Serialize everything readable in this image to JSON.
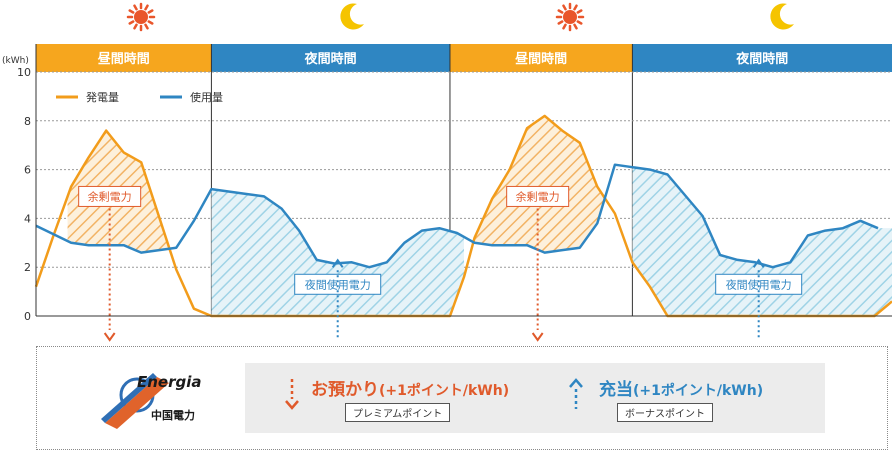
{
  "chart_data": {
    "type": "area",
    "ylabel": "(kWh)",
    "ylim": [
      0,
      10
    ],
    "yticks": [
      0,
      2,
      4,
      6,
      8,
      10
    ],
    "grid": true,
    "legend_position": "top-left",
    "bands": [
      {
        "label": "昼間時間",
        "kind": "day"
      },
      {
        "label": "夜間時間",
        "kind": "night"
      },
      {
        "label": "昼間時間",
        "kind": "day"
      },
      {
        "label": "夜間時間",
        "kind": "night"
      }
    ],
    "series": [
      {
        "name": "発電量",
        "color": "#f29c1b",
        "points": [
          [
            0,
            1.2
          ],
          [
            0.5,
            3.3
          ],
          [
            1,
            5.3
          ],
          [
            1.5,
            6.5
          ],
          [
            2,
            7.6
          ],
          [
            2.5,
            6.7
          ],
          [
            3,
            6.3
          ],
          [
            3.5,
            4.1
          ],
          [
            4,
            1.9
          ],
          [
            4.5,
            0.3
          ],
          [
            5,
            0
          ],
          [
            5.5,
            0
          ],
          [
            6,
            0
          ],
          [
            6.5,
            0
          ],
          [
            7,
            0
          ],
          [
            7.5,
            0
          ],
          [
            8,
            0
          ],
          [
            8.5,
            0
          ],
          [
            9,
            0
          ],
          [
            9.5,
            0
          ],
          [
            10,
            0
          ],
          [
            10.5,
            0
          ],
          [
            11,
            0
          ],
          [
            11.5,
            0
          ],
          [
            11.8,
            0
          ],
          [
            12.2,
            1.6
          ],
          [
            12.5,
            3.2
          ],
          [
            13,
            4.8
          ],
          [
            13.5,
            6
          ],
          [
            14,
            7.7
          ],
          [
            14.5,
            8.2
          ],
          [
            15,
            7.6
          ],
          [
            15.5,
            7.1
          ],
          [
            16,
            5.3
          ],
          [
            16.5,
            4.2
          ],
          [
            17,
            2.2
          ],
          [
            17.5,
            1.2
          ],
          [
            18,
            0
          ],
          [
            18.5,
            0
          ],
          [
            19,
            0
          ],
          [
            19.5,
            0
          ],
          [
            20,
            0
          ],
          [
            20.5,
            0
          ],
          [
            21,
            0
          ],
          [
            21.5,
            0
          ],
          [
            22,
            0
          ],
          [
            22.5,
            0
          ],
          [
            23,
            0
          ],
          [
            23.5,
            0
          ],
          [
            23.9,
            0
          ],
          [
            24.4,
            0.6
          ]
        ]
      },
      {
        "name": "使用量",
        "color": "#2f86c2",
        "points": [
          [
            0,
            3.7
          ],
          [
            1,
            3
          ],
          [
            1.5,
            2.9
          ],
          [
            2,
            2.9
          ],
          [
            2.5,
            2.9
          ],
          [
            3,
            2.6
          ],
          [
            4,
            2.8
          ],
          [
            4.5,
            3.9
          ],
          [
            5,
            5.2
          ],
          [
            6,
            5
          ],
          [
            6.5,
            4.9
          ],
          [
            7,
            4.4
          ],
          [
            7.5,
            3.5
          ],
          [
            8,
            2.3
          ],
          [
            8.5,
            2.15
          ],
          [
            9,
            2.2
          ],
          [
            9.5,
            2
          ],
          [
            10,
            2.2
          ],
          [
            10.5,
            3
          ],
          [
            11,
            3.5
          ],
          [
            11.5,
            3.6
          ],
          [
            12,
            3.4
          ],
          [
            12.5,
            3
          ],
          [
            13,
            2.9
          ],
          [
            13.5,
            2.9
          ],
          [
            14,
            2.9
          ],
          [
            14.5,
            2.6
          ],
          [
            15,
            2.7
          ],
          [
            15.5,
            2.8
          ],
          [
            16,
            3.8
          ],
          [
            16.5,
            6.2
          ],
          [
            17,
            6.1
          ],
          [
            17.5,
            6
          ],
          [
            18,
            5.8
          ],
          [
            19,
            4.1
          ],
          [
            19.5,
            2.5
          ],
          [
            20,
            2.3
          ],
          [
            20.5,
            2.2
          ],
          [
            21,
            2
          ],
          [
            21.5,
            2.2
          ],
          [
            22,
            3.3
          ],
          [
            22.5,
            3.5
          ],
          [
            23,
            3.6
          ],
          [
            23.5,
            3.9
          ],
          [
            24,
            3.6
          ]
        ]
      }
    ],
    "annotations": [
      {
        "text": "余剰電力",
        "color": "#e05a2b"
      },
      {
        "text": "夜間使用電力",
        "color": "#2f86c2"
      },
      {
        "text": "余剰電力",
        "color": "#e05a2b"
      },
      {
        "text": "夜間使用電力",
        "color": "#2f86c2"
      }
    ],
    "icons": [
      "sun-icon",
      "moon-icon",
      "sun-icon",
      "moon-icon"
    ]
  },
  "brand": {
    "name": "Energia",
    "sub": "中国電力"
  },
  "legend_box": {
    "deposit_main": "お預かり",
    "deposit_note": "(+1ポイント/kWh)",
    "deposit_tag": "プレミアムポイント",
    "charge_main": "充当",
    "charge_note": "(+1ポイント/kWh)",
    "charge_tag": "ボーナスポイント"
  },
  "colors": {
    "day_band": "#f6a61e",
    "night_band": "#2f86c2",
    "surplus": "#e05a2b",
    "night_use": "#2f86c2"
  }
}
